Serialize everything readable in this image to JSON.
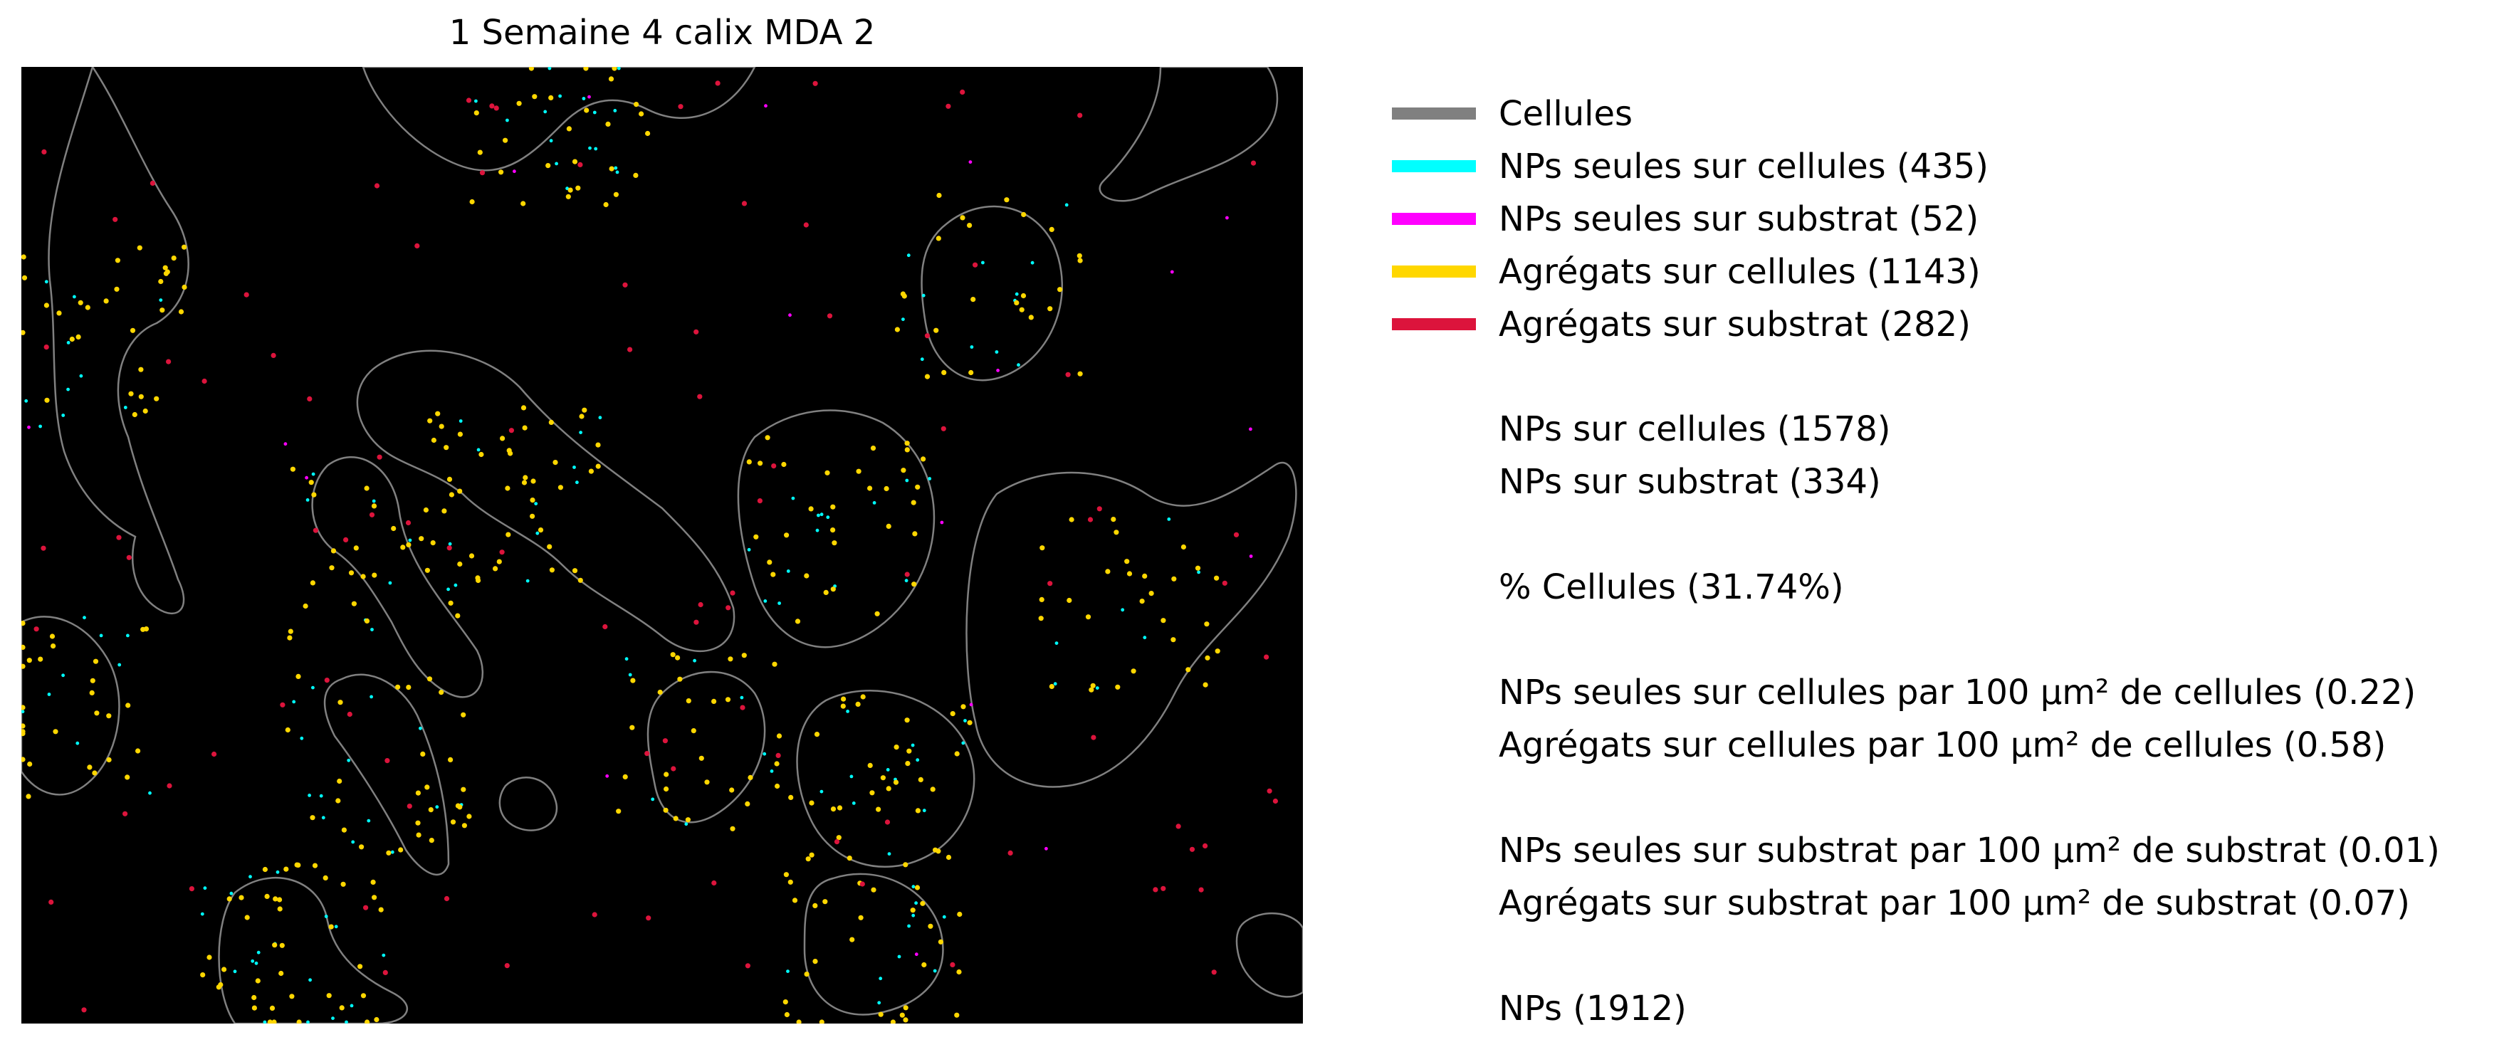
{
  "chart_data": {
    "type": "scatter",
    "title": "1 Semaine 4 calix MDA 2",
    "xlabel": "",
    "ylabel": "",
    "axes": "off",
    "background": "#000000",
    "legend": [
      {
        "key": "cells",
        "label": "Cellules",
        "color": "#808080"
      },
      {
        "key": "np_cells",
        "label": "NPs seules sur cellules (435)",
        "color": "#00ffff",
        "count": 435
      },
      {
        "key": "np_substrate",
        "label": "NPs seules sur substrat (52)",
        "color": "#ff00ff",
        "count": 52
      },
      {
        "key": "agg_cells",
        "label": "Agrégats sur cellules (1143)",
        "color": "#ffd700",
        "count": 1143
      },
      {
        "key": "agg_substrate",
        "label": "Agrégats sur substrat (282)",
        "color": "#dc143c",
        "count": 282
      }
    ],
    "stats": [
      {
        "label": "NPs sur cellules (1578)",
        "value": 1578
      },
      {
        "label": "NPs sur substrat (334)",
        "value": 334
      },
      {
        "label": "% Cellules (31.74%)",
        "value": 31.74
      },
      {
        "label": "NPs seules sur cellules par 100 µm² de cellules (0.22)",
        "value": 0.22
      },
      {
        "label": "Agrégats sur cellules par 100 µm² de cellules (0.58)",
        "value": 0.58
      },
      {
        "label": "NPs seules sur substrat par 100 µm² de substrat (0.01)",
        "value": 0.01
      },
      {
        "label": "Agrégats sur substrat par 100 µm² de substrat (0.07)",
        "value": 0.07
      },
      {
        "label": "NPs (1912)",
        "value": 1912
      }
    ]
  }
}
